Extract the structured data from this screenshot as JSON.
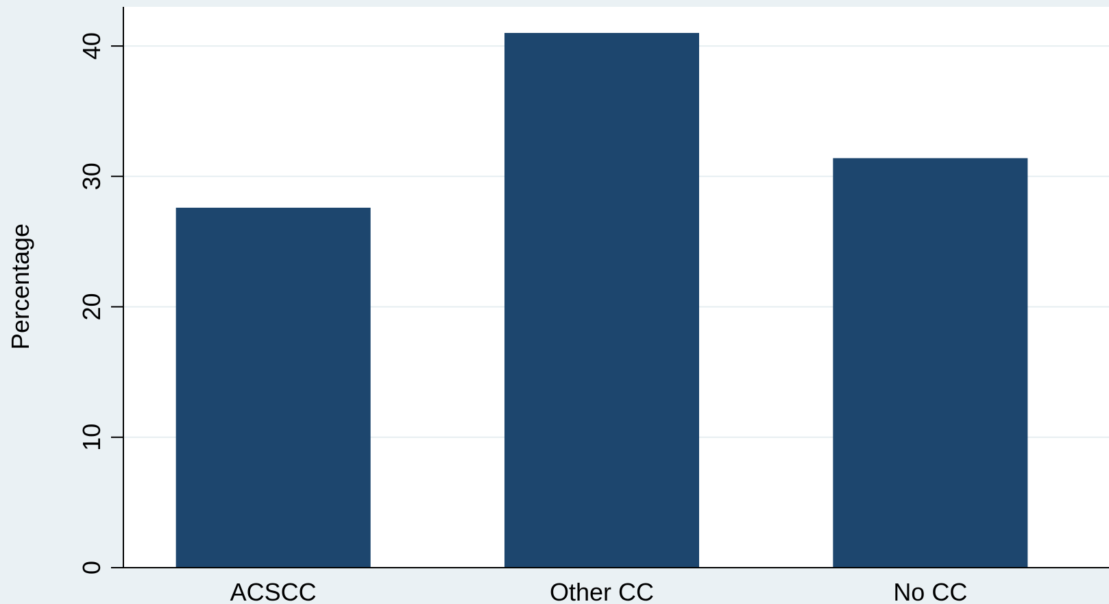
{
  "chart_data": {
    "type": "bar",
    "categories": [
      "ACSCC",
      "Other CC",
      "No CC"
    ],
    "values": [
      27.6,
      41.0,
      31.4
    ],
    "title": "",
    "xlabel": "",
    "ylabel": "Percentage",
    "ylim": [
      0,
      43
    ],
    "yticks": [
      0,
      10,
      20,
      30,
      40
    ],
    "ytick_labels": [
      "0",
      "10",
      "20",
      "30",
      "40"
    ],
    "grid": true,
    "legend": "none"
  },
  "colors": {
    "bar": "#1d466e",
    "plot_background": "#ffffff",
    "outer_background": "#eaf1f4",
    "gridline": "#e6eef1",
    "axis": "#000000"
  }
}
